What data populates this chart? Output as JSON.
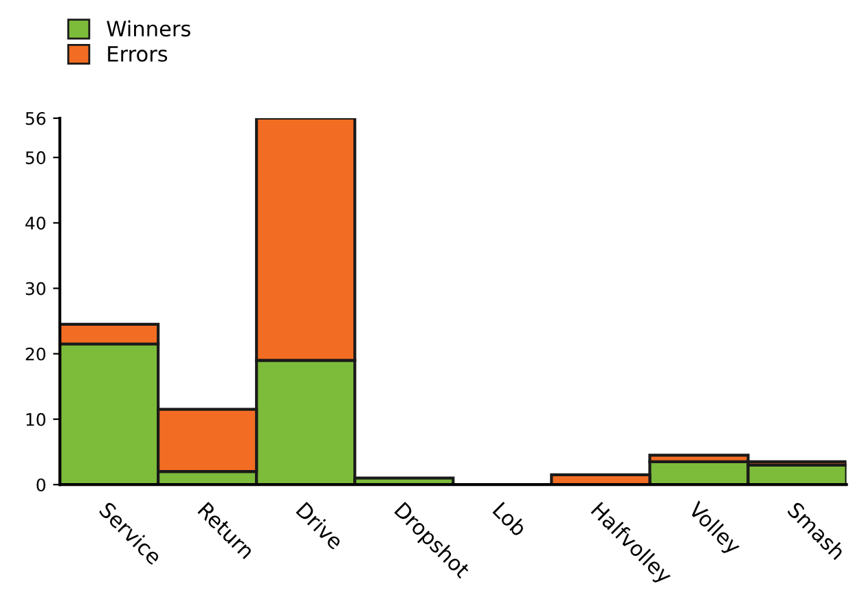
{
  "chart_data": {
    "type": "bar",
    "stacked": true,
    "categories": [
      "Service",
      "Return",
      "Drive",
      "Dropshot",
      "Lob",
      "Halfvolley",
      "Volley",
      "Smash"
    ],
    "series": [
      {
        "name": "Winners",
        "color": "#7dbb3a",
        "values": [
          21.5,
          2,
          19,
          1,
          null,
          null,
          3.5,
          3
        ]
      },
      {
        "name": "Errors",
        "color": "#f26d23",
        "values": [
          3,
          9.5,
          37,
          null,
          null,
          1.5,
          1,
          0.5
        ]
      }
    ],
    "ylim": [
      0,
      56
    ],
    "yticks": [
      0,
      10,
      20,
      30,
      40,
      50,
      56
    ],
    "grid": false,
    "legend": "top left"
  }
}
